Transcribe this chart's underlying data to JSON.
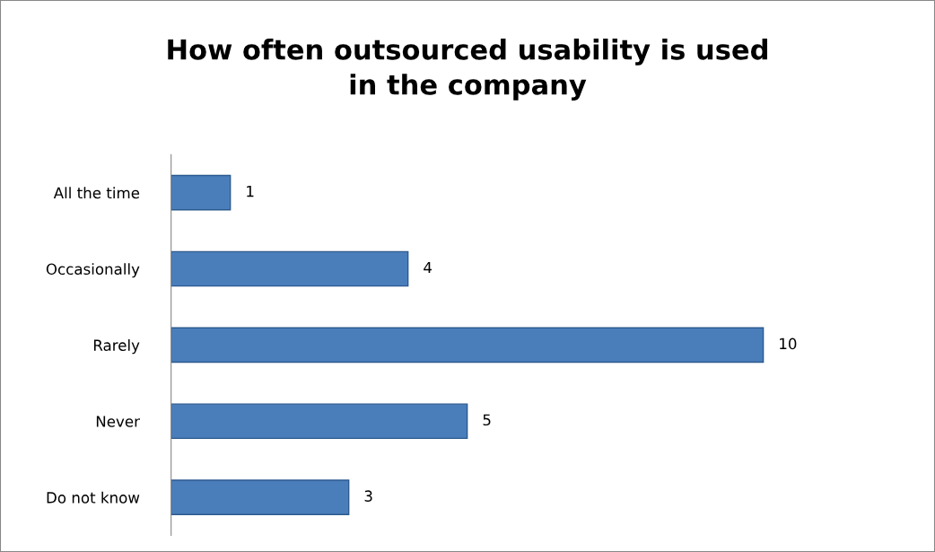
{
  "chart_data": {
    "type": "bar",
    "orientation": "horizontal",
    "title": "How often outsourced usability is used\nin the company",
    "categories": [
      "All the time",
      "Occasionally",
      "Rarely",
      "Never",
      "Do not know"
    ],
    "values": [
      1,
      4,
      10,
      5,
      3
    ],
    "color": "#4a7ebb",
    "data_labels": true,
    "grid": false
  }
}
